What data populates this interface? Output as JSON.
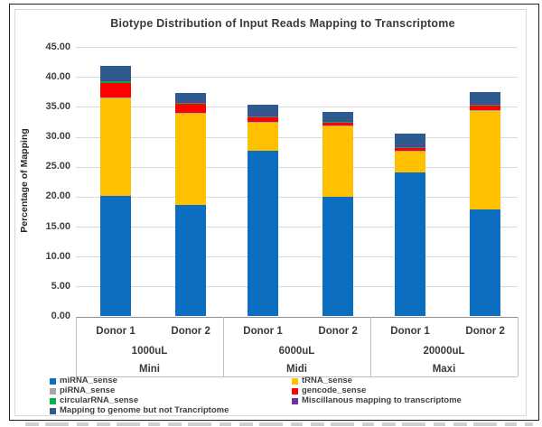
{
  "figure": {
    "title": "Biotype Distribution of Input Reads Mapping to Transcriptome",
    "y_axis_title": "Percentage of Mapping"
  },
  "chart_data": {
    "type": "bar",
    "stacked": true,
    "title": "Biotype Distribution of Input Reads Mapping to Transcriptome",
    "xlabel": "",
    "ylabel": "Percentage of Mapping",
    "ylim": [
      0,
      45
    ],
    "ytick_step": 5,
    "ytick_labels": [
      "45.00",
      "40.00",
      "35.00",
      "30.00",
      "25.00",
      "20.00",
      "15.00",
      "10.00",
      "5.00",
      "0.00"
    ],
    "grid": "horizontal",
    "legend_position": "bottom",
    "groups": [
      {
        "volume": "1000uL",
        "kit": "Mini",
        "donors": [
          "Donor 1",
          "Donor 2"
        ]
      },
      {
        "volume": "6000uL",
        "kit": "Midi",
        "donors": [
          "Donor 1",
          "Donor 2"
        ]
      },
      {
        "volume": "20000uL",
        "kit": "Maxi",
        "donors": [
          "Donor 1",
          "Donor 2"
        ]
      }
    ],
    "categories": [
      "Mini 1000uL Donor 1",
      "Mini 1000uL Donor 2",
      "Midi 6000uL Donor 1",
      "Midi 6000uL Donor 2",
      "Maxi 20000uL Donor 1",
      "Maxi 20000uL Donor 2"
    ],
    "series": [
      {
        "name": "miRNA_sense",
        "color": "#0b6ec1",
        "values": [
          20.1,
          18.6,
          27.7,
          20.0,
          24.0,
          17.8
        ]
      },
      {
        "name": "tRNA_sense",
        "color": "#ffc000",
        "values": [
          16.4,
          15.3,
          4.8,
          11.9,
          3.6,
          16.6
        ]
      },
      {
        "name": "piRNA_sense",
        "color": "#a6a6a6",
        "values": [
          0.05,
          0.05,
          0.05,
          0.05,
          0.05,
          0.05
        ]
      },
      {
        "name": "gencode_sense",
        "color": "#ff0000",
        "values": [
          2.4,
          1.6,
          0.8,
          0.4,
          0.5,
          0.8
        ]
      },
      {
        "name": "circularRNA_sense",
        "color": "#00b050",
        "values": [
          0.3,
          0.15,
          0.1,
          0.1,
          0.1,
          0.1
        ]
      },
      {
        "name": "Miscillanous mapping to transcriptome",
        "color": "#7030a0",
        "values": [
          0.2,
          0.15,
          0.3,
          0.2,
          0.3,
          0.2
        ]
      },
      {
        "name": "Mapping to genome but not Trancriptome",
        "color": "#2d5b8e",
        "values": [
          2.4,
          1.5,
          1.6,
          1.5,
          2.0,
          1.85
        ]
      }
    ],
    "legend_columns": [
      [
        "miRNA_sense",
        "piRNA_sense",
        "circularRNA_sense",
        "Mapping to genome but not Trancriptome"
      ],
      [
        "tRNA_sense",
        "gencode_sense",
        "Miscillanous mapping to transcriptome"
      ]
    ]
  }
}
